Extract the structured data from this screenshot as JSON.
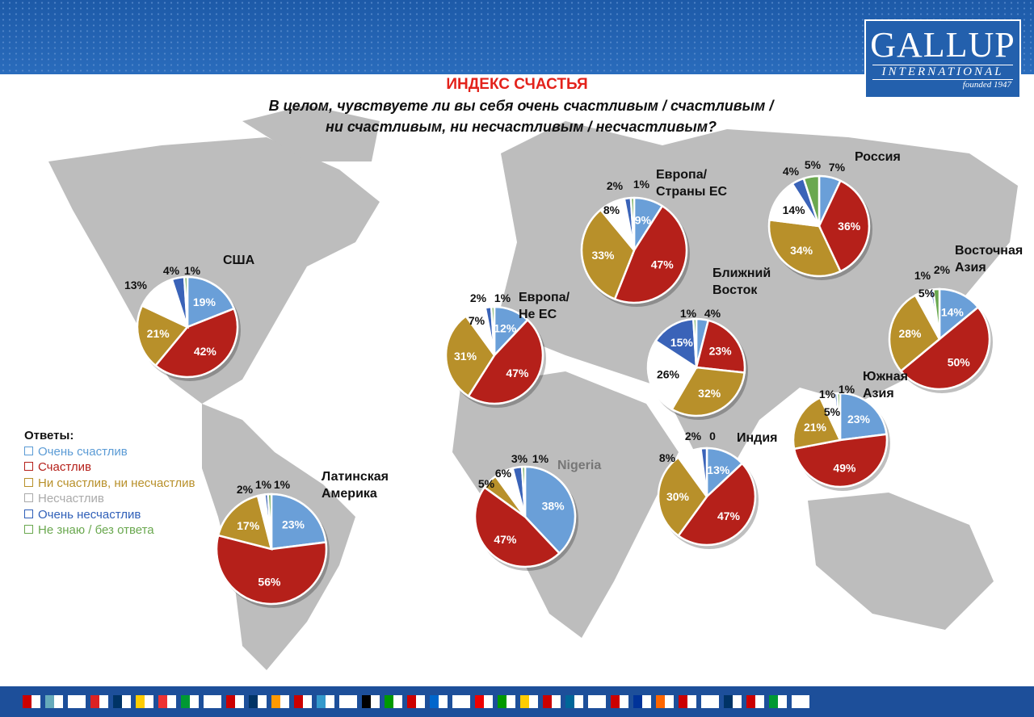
{
  "header": {
    "logo_main": "GALLUP",
    "logo_sub": "INTERNATIONAL",
    "logo_founded": "founded 1947"
  },
  "chart_data": {
    "type": "pie",
    "title": "ИНДЕКС СЧАСТЬЯ",
    "subtitle_line1": "В целом, чувствуете ли вы себя очень счастливым / счастливым /",
    "subtitle_line2": "ни счастливым, ни несчастливым / несчастливым?",
    "legend_title": "Ответы:",
    "categories": [
      "Очень счастлив",
      "Счастлив",
      "Ни счастлив, ни несчастлив",
      "Несчастлив",
      "Очень несчастлив",
      "Не знаю / без ответа"
    ],
    "colors": [
      "#6a9fd8",
      "#b5201a",
      "#b8902a",
      "#ffffff",
      "#3a63b8",
      "#6aa84f"
    ],
    "legend_colors": [
      "#5b9bd5",
      "#b5201a",
      "#b8902a",
      "#aaaaaa",
      "#2f5fb8",
      "#6aa84f"
    ],
    "series": [
      {
        "name": "США",
        "values": [
          19,
          42,
          21,
          13,
          4,
          1
        ]
      },
      {
        "name": "Латинская Америка",
        "values": [
          23,
          56,
          17,
          2,
          1,
          1
        ]
      },
      {
        "name": "Европа/ Не ЕС",
        "values": [
          12,
          47,
          31,
          7,
          2,
          1
        ]
      },
      {
        "name": "Европа/ Страны ЕС",
        "values": [
          9,
          47,
          33,
          8,
          2,
          1
        ]
      },
      {
        "name": "Nigeria",
        "values": [
          38,
          47,
          5,
          6,
          3,
          1
        ]
      },
      {
        "name": "Ближний Восток",
        "values": [
          4,
          23,
          32,
          26,
          15,
          1
        ]
      },
      {
        "name": "Индия",
        "values": [
          13,
          47,
          30,
          8,
          2,
          0
        ]
      },
      {
        "name": "Россия",
        "values": [
          7,
          36,
          34,
          14,
          4,
          5
        ]
      },
      {
        "name": "Восточная Азия",
        "values": [
          14,
          50,
          28,
          5,
          1,
          2
        ]
      },
      {
        "name": "Южная Азия",
        "values": [
          23,
          49,
          21,
          5,
          1,
          1
        ]
      }
    ]
  }
}
